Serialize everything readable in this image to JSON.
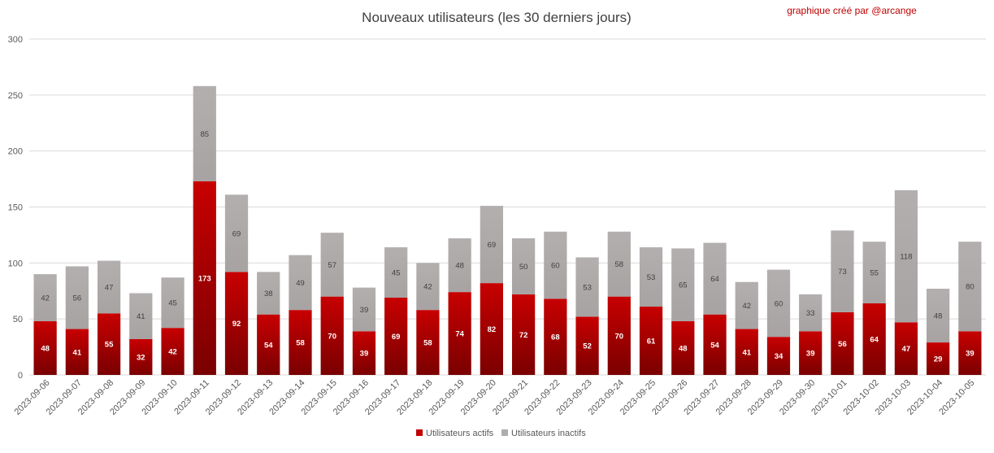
{
  "chart_data": {
    "type": "bar",
    "stacked": true,
    "title": "Nouveaux utilisateurs  (les 30 derniers  jours)",
    "credit": "graphique créé par @arcange",
    "xlabel": "",
    "ylabel": "",
    "ylim": [
      0,
      300
    ],
    "yticks": [
      0,
      50,
      100,
      150,
      200,
      250,
      300
    ],
    "grid": true,
    "legend_position": "bottom",
    "categories": [
      "2023-09-06",
      "2023-09-07",
      "2023-09-08",
      "2023-09-09",
      "2023-09-10",
      "2023-09-11",
      "2023-09-12",
      "2023-09-13",
      "2023-09-14",
      "2023-09-15",
      "2023-09-16",
      "2023-09-17",
      "2023-09-18",
      "2023-09-19",
      "2023-09-20",
      "2023-09-21",
      "2023-09-22",
      "2023-09-23",
      "2023-09-24",
      "2023-09-25",
      "2023-09-26",
      "2023-09-27",
      "2023-09-28",
      "2023-09-29",
      "2023-09-30",
      "2023-10-01",
      "2023-10-02",
      "2023-10-03",
      "2023-10-04",
      "2023-10-05"
    ],
    "series": [
      {
        "name": "Utilisateurs actifs",
        "color": "#c00000",
        "values": [
          48,
          41,
          55,
          32,
          42,
          173,
          92,
          54,
          58,
          70,
          39,
          69,
          58,
          74,
          82,
          72,
          68,
          52,
          70,
          61,
          48,
          54,
          41,
          34,
          39,
          56,
          64,
          47,
          29,
          39
        ]
      },
      {
        "name": "Utilisateurs inactifs",
        "color": "#b0acac",
        "values": [
          42,
          56,
          47,
          41,
          45,
          85,
          69,
          38,
          49,
          57,
          39,
          45,
          42,
          48,
          69,
          50,
          60,
          53,
          58,
          53,
          65,
          64,
          42,
          60,
          33,
          73,
          55,
          118,
          48,
          80
        ]
      }
    ]
  }
}
